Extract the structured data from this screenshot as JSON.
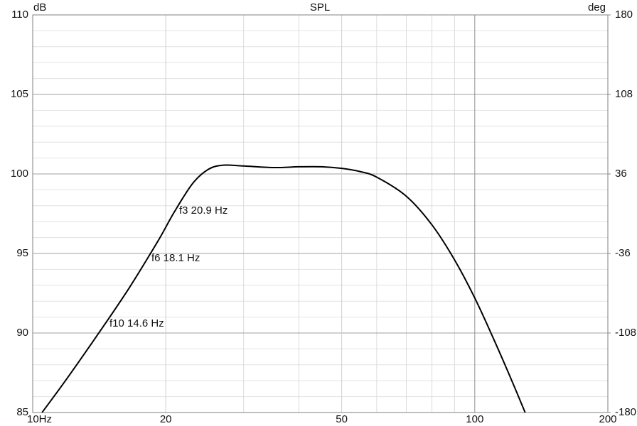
{
  "chart_data": {
    "type": "line",
    "title": "SPL",
    "ylabel": "dB",
    "y2label": "deg",
    "xlog": true,
    "xlim": [
      10,
      200
    ],
    "xticks": [
      {
        "value": 10,
        "label": "10Hz"
      },
      20,
      50,
      100,
      200
    ],
    "xminorticks": [
      30,
      40,
      60,
      70,
      80,
      90
    ],
    "ylim": [
      85,
      110
    ],
    "yticks": [
      85,
      90,
      95,
      100,
      105,
      110
    ],
    "y2lim": [
      -180,
      180
    ],
    "y2ticks": [
      -180,
      -108,
      -36,
      36,
      108,
      180
    ],
    "grid": true,
    "color": "#000000",
    "x": [
      10.5,
      12,
      14.6,
      16.5,
      18.1,
      19.5,
      20.9,
      23,
      25,
      27,
      30,
      35,
      40,
      45,
      50,
      55,
      60,
      70,
      80,
      90,
      100,
      110,
      120,
      130
    ],
    "values": [
      85,
      87.2,
      90.6,
      92.8,
      94.6,
      96.1,
      97.6,
      99.4,
      100.3,
      100.55,
      100.5,
      100.4,
      100.45,
      100.45,
      100.35,
      100.15,
      99.8,
      98.6,
      96.8,
      94.6,
      92.2,
      89.7,
      87.3,
      85
    ],
    "annotations": [
      "f3 20.9 Hz",
      "f6 18.1 Hz",
      "f10 14.6 Hz"
    ]
  }
}
